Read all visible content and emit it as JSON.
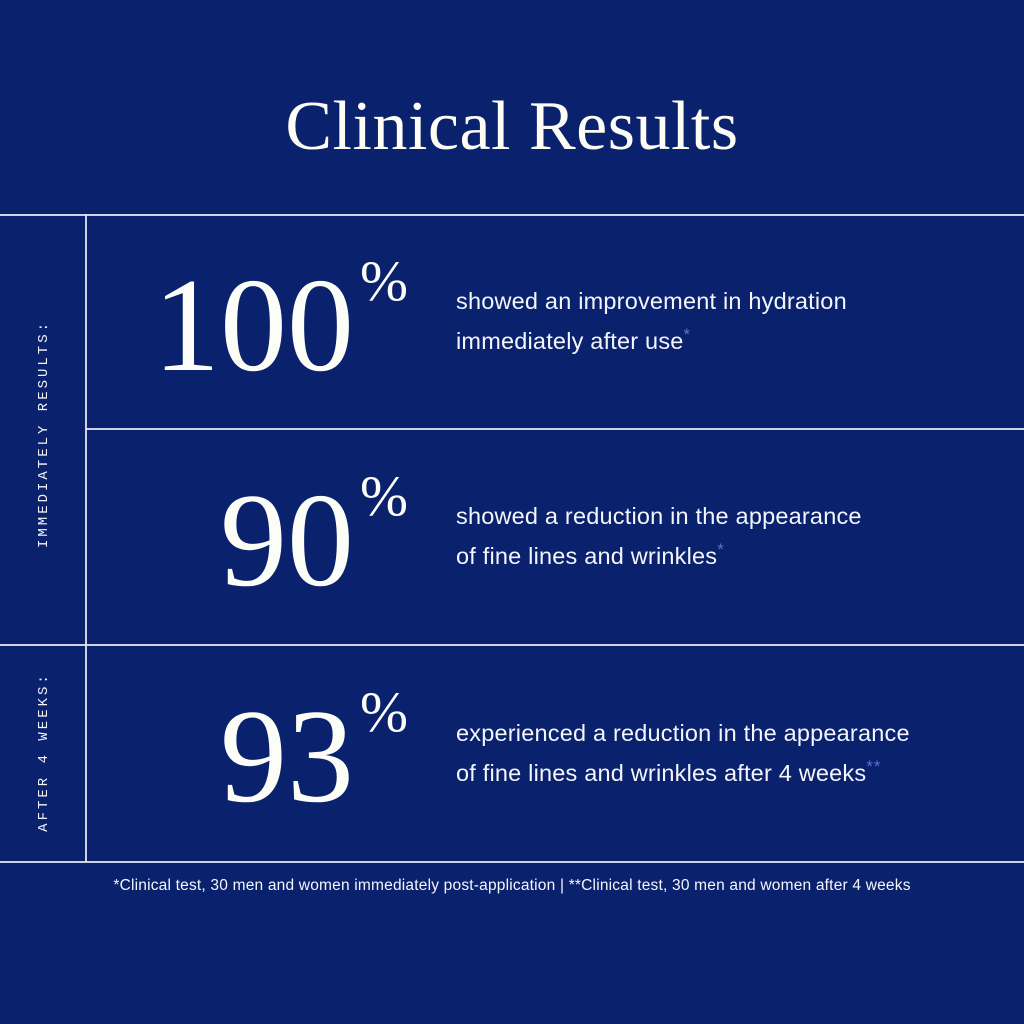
{
  "title": "Clinical Results",
  "colors": {
    "background": "#0a216e",
    "divider_line": "#e2e6f3",
    "text": "#fdfdf8",
    "footnote_accent": "#5574d9"
  },
  "sections": [
    {
      "label": "IMMEDIATELY RESULTS:"
    },
    {
      "label": "AFTER 4 WEEKS:"
    }
  ],
  "stats": [
    {
      "value": "100",
      "unit": "%",
      "desc_line1": "showed an improvement in hydration",
      "desc_line2": "immediately after use",
      "marker": "*"
    },
    {
      "value": "90",
      "unit": "%",
      "desc_line1": "showed a reduction in the appearance",
      "desc_line2": "of fine lines and wrinkles",
      "marker": "*"
    },
    {
      "value": "93",
      "unit": "%",
      "desc_line1": "experienced a reduction in the appearance",
      "desc_line2": "of fine lines and wrinkles after 4 weeks",
      "marker": "**"
    }
  ],
  "footer": "*Clinical test, 30 men and women immediately post-application  |  **Clinical test, 30 men and women after 4 weeks"
}
